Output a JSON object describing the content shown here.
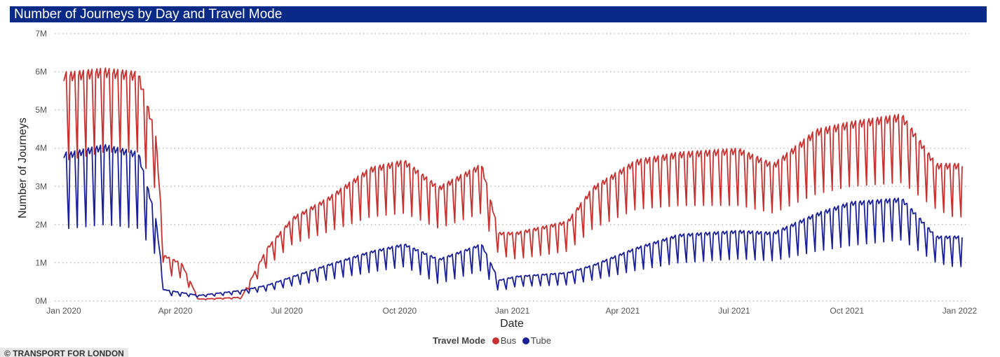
{
  "title": "Number of Journeys by Day and Travel Mode",
  "credit": "© TRANSPORT FOR LONDON",
  "chart_data": {
    "type": "line",
    "title": "Number of Journeys by Day and Travel Mode",
    "xlabel": "Date",
    "ylabel": "Number of Journeys",
    "ylim": [
      0,
      7000000
    ],
    "yticks": [
      {
        "v": 0,
        "label": "0M"
      },
      {
        "v": 1000000,
        "label": "1M"
      },
      {
        "v": 2000000,
        "label": "2M"
      },
      {
        "v": 3000000,
        "label": "3M"
      },
      {
        "v": 4000000,
        "label": "4M"
      },
      {
        "v": 5000000,
        "label": "5M"
      },
      {
        "v": 6000000,
        "label": "6M"
      },
      {
        "v": 7000000,
        "label": "7M"
      }
    ],
    "xlim": [
      "2020-01-01",
      "2022-01-03"
    ],
    "xticks": [
      {
        "date": "2020-01-01",
        "label": "Jan 2020"
      },
      {
        "date": "2020-04-01",
        "label": "Apr 2020"
      },
      {
        "date": "2020-07-01",
        "label": "Jul 2020"
      },
      {
        "date": "2020-10-01",
        "label": "Oct 2020"
      },
      {
        "date": "2021-01-01",
        "label": "Jan 2021"
      },
      {
        "date": "2021-04-01",
        "label": "Apr 2021"
      },
      {
        "date": "2021-07-01",
        "label": "Jul 2021"
      },
      {
        "date": "2021-10-01",
        "label": "Oct 2021"
      },
      {
        "date": "2022-01-01",
        "label": "Jan 2022"
      }
    ],
    "grid": "horizontal dotted",
    "legend": {
      "title": "Travel Mode",
      "position": "bottom-center"
    },
    "series": [
      {
        "name": "Bus",
        "color": "#c8312f",
        "unit": "weekly pattern, weekday peak / weekend low",
        "weekly_levels": [
          {
            "week": "2020-01-06",
            "weekday": 6000000,
            "weekend": 3700000
          },
          {
            "week": "2020-02-03",
            "weekday": 6100000,
            "weekend": 3900000
          },
          {
            "week": "2020-03-02",
            "weekday": 6000000,
            "weekend": 3900000
          },
          {
            "week": "2020-03-16",
            "weekday": 4400000,
            "weekend": 2900000
          },
          {
            "week": "2020-03-23",
            "weekday": 1200000,
            "weekend": 700000
          },
          {
            "week": "2020-04-06",
            "weekday": 1000000,
            "weekend": 600000
          },
          {
            "week": "2020-04-20",
            "weekday": 50000,
            "weekend": 30000
          },
          {
            "week": "2020-05-25",
            "weekday": 100000,
            "weekend": 60000
          },
          {
            "week": "2020-06-15",
            "weekday": 1400000,
            "weekend": 900000
          },
          {
            "week": "2020-07-06",
            "weekday": 2200000,
            "weekend": 1500000
          },
          {
            "week": "2020-08-03",
            "weekday": 2700000,
            "weekend": 1800000
          },
          {
            "week": "2020-09-07",
            "weekday": 3500000,
            "weekend": 2200000
          },
          {
            "week": "2020-10-05",
            "weekday": 3700000,
            "weekend": 2300000
          },
          {
            "week": "2020-11-02",
            "weekday": 3000000,
            "weekend": 1900000
          },
          {
            "week": "2020-12-07",
            "weekday": 3600000,
            "weekend": 2300000
          },
          {
            "week": "2020-12-21",
            "weekday": 1800000,
            "weekend": 1200000
          },
          {
            "week": "2021-01-04",
            "weekday": 1800000,
            "weekend": 1100000
          },
          {
            "week": "2021-02-15",
            "weekday": 2100000,
            "weekend": 1300000
          },
          {
            "week": "2021-03-08",
            "weekday": 3000000,
            "weekend": 1900000
          },
          {
            "week": "2021-04-12",
            "weekday": 3700000,
            "weekend": 2400000
          },
          {
            "week": "2021-05-17",
            "weekday": 3900000,
            "weekend": 2500000
          },
          {
            "week": "2021-07-05",
            "weekday": 4000000,
            "weekend": 2500000
          },
          {
            "week": "2021-08-02",
            "weekday": 3600000,
            "weekend": 2300000
          },
          {
            "week": "2021-09-06",
            "weekday": 4500000,
            "weekend": 2800000
          },
          {
            "week": "2021-10-04",
            "weekday": 4700000,
            "weekend": 3000000
          },
          {
            "week": "2021-11-15",
            "weekday": 4900000,
            "weekend": 3100000
          },
          {
            "week": "2021-12-13",
            "weekday": 3600000,
            "weekend": 2400000
          },
          {
            "week": "2021-12-27",
            "weekday": 3600000,
            "weekend": 2200000
          }
        ]
      },
      {
        "name": "Tube",
        "color": "#1a1f9a",
        "unit": "weekly pattern, weekday peak / weekend low",
        "weekly_levels": [
          {
            "week": "2020-01-06",
            "weekday": 3900000,
            "weekend": 1900000
          },
          {
            "week": "2020-02-03",
            "weekday": 4100000,
            "weekend": 2000000
          },
          {
            "week": "2020-03-02",
            "weekday": 3900000,
            "weekend": 1900000
          },
          {
            "week": "2020-03-16",
            "weekday": 2200000,
            "weekend": 1200000
          },
          {
            "week": "2020-03-23",
            "weekday": 300000,
            "weekend": 150000
          },
          {
            "week": "2020-04-20",
            "weekday": 150000,
            "weekend": 100000
          },
          {
            "week": "2020-05-25",
            "weekday": 280000,
            "weekend": 180000
          },
          {
            "week": "2020-06-15",
            "weekday": 420000,
            "weekend": 260000
          },
          {
            "week": "2020-07-06",
            "weekday": 650000,
            "weekend": 400000
          },
          {
            "week": "2020-08-03",
            "weekday": 950000,
            "weekend": 550000
          },
          {
            "week": "2020-09-07",
            "weekday": 1300000,
            "weekend": 750000
          },
          {
            "week": "2020-10-05",
            "weekday": 1500000,
            "weekend": 900000
          },
          {
            "week": "2020-11-02",
            "weekday": 1100000,
            "weekend": 450000
          },
          {
            "week": "2020-12-07",
            "weekday": 1500000,
            "weekend": 800000
          },
          {
            "week": "2020-12-21",
            "weekday": 550000,
            "weekend": 250000
          },
          {
            "week": "2021-01-04",
            "weekday": 650000,
            "weekend": 380000
          },
          {
            "week": "2021-02-15",
            "weekday": 750000,
            "weekend": 420000
          },
          {
            "week": "2021-03-08",
            "weekday": 950000,
            "weekend": 550000
          },
          {
            "week": "2021-04-12",
            "weekday": 1400000,
            "weekend": 800000
          },
          {
            "week": "2021-05-17",
            "weekday": 1750000,
            "weekend": 1000000
          },
          {
            "week": "2021-07-05",
            "weekday": 1850000,
            "weekend": 1100000
          },
          {
            "week": "2021-08-02",
            "weekday": 1800000,
            "weekend": 1050000
          },
          {
            "week": "2021-09-06",
            "weekday": 2300000,
            "weekend": 1300000
          },
          {
            "week": "2021-10-04",
            "weekday": 2600000,
            "weekend": 1450000
          },
          {
            "week": "2021-11-15",
            "weekday": 2700000,
            "weekend": 1600000
          },
          {
            "week": "2021-12-13",
            "weekday": 1700000,
            "weekend": 1000000
          },
          {
            "week": "2021-12-27",
            "weekday": 1700000,
            "weekend": 900000
          }
        ]
      }
    ]
  }
}
